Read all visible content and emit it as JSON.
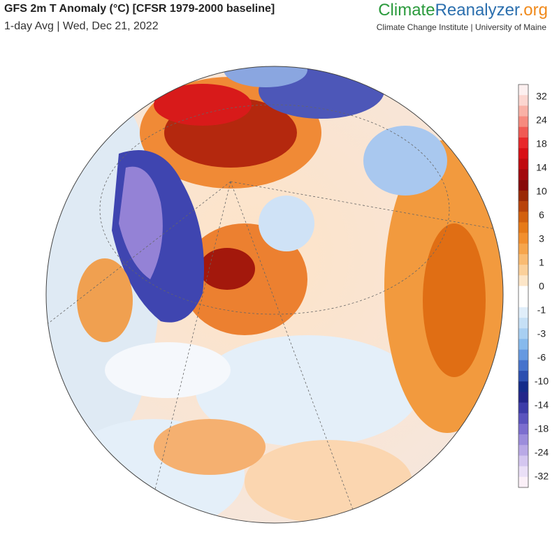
{
  "header": {
    "title": "GFS 2m T Anomaly (°C) [CFSR 1979-2000 baseline]",
    "subtitle": "1-day Avg | Wed, Dec 21, 2022"
  },
  "logo": {
    "part1": "Climate",
    "part2": "Reanalyzer",
    "part3": ".org",
    "tagline": "Climate Change Institute | University of Maine"
  },
  "colorbar": {
    "labels": [
      "32",
      "24",
      "18",
      "14",
      "10",
      "6",
      "3",
      "1",
      "0",
      "-1",
      "-3",
      "-6",
      "-10",
      "-14",
      "-18",
      "-24",
      "-32"
    ],
    "colors": [
      "#fdf0f0",
      "#fcd6d0",
      "#f9b1a6",
      "#f68a7e",
      "#f05a54",
      "#e8282a",
      "#d80f14",
      "#c00a0e",
      "#a2080c",
      "#870a0a",
      "#9a2a06",
      "#b8430a",
      "#d2600e",
      "#e67a18",
      "#f28f2e",
      "#f6a54c",
      "#f9bb72",
      "#fbd09a",
      "#fde6c8",
      "#ffffff",
      "#ffffff",
      "#e0eefa",
      "#c6e0f6",
      "#a8cff2",
      "#86b9ec",
      "#6699e0",
      "#4673cc",
      "#2c4fb0",
      "#142c8a",
      "#23268a",
      "#3d3ca8",
      "#5b54be",
      "#7c6ecf",
      "#9c8ddc",
      "#b9a9e6",
      "#d4c6f0",
      "#eadff7",
      "#fbf0f8"
    ]
  }
}
